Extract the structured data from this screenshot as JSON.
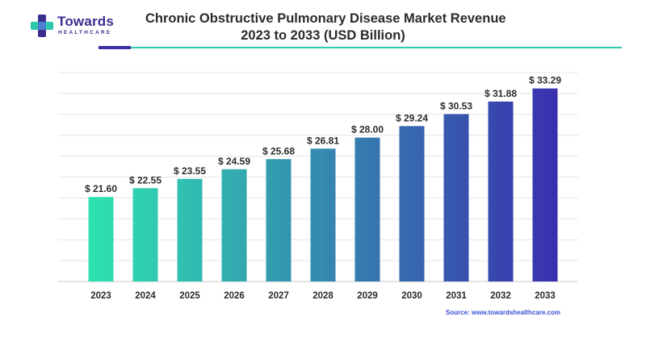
{
  "brand": {
    "name": "Towards",
    "tagline": "HEALTHCARE",
    "colors": {
      "primary": "#3a2f8f",
      "accent": "#2fc7ad"
    },
    "icon": "cross-logo-icon"
  },
  "source_text": "Source: www.towardshealthcare.com",
  "chart_data": {
    "type": "bar",
    "title_line1": "Chronic Obstructive Pulmonary Disease Market Revenue",
    "title_line2": "2023 to 2033 (USD Billion)",
    "categories": [
      "2023",
      "2024",
      "2025",
      "2026",
      "2027",
      "2028",
      "2029",
      "2030",
      "2031",
      "2032",
      "2033"
    ],
    "values": [
      21.6,
      22.55,
      23.55,
      24.59,
      25.68,
      26.81,
      28.0,
      29.24,
      30.53,
      31.88,
      33.29
    ],
    "value_labels": [
      "$ 21.60",
      "$ 22.55",
      "$ 23.55",
      "$ 24.59",
      "$ 25.68",
      "$ 26.81",
      "$ 28.00",
      "$ 29.24",
      "$ 30.53",
      "$ 31.88",
      "$ 33.29"
    ],
    "ylim": [
      12.5,
      35
    ],
    "grid": true,
    "bar_gradient": [
      "#2ee3b0",
      "#3a2fae"
    ]
  }
}
